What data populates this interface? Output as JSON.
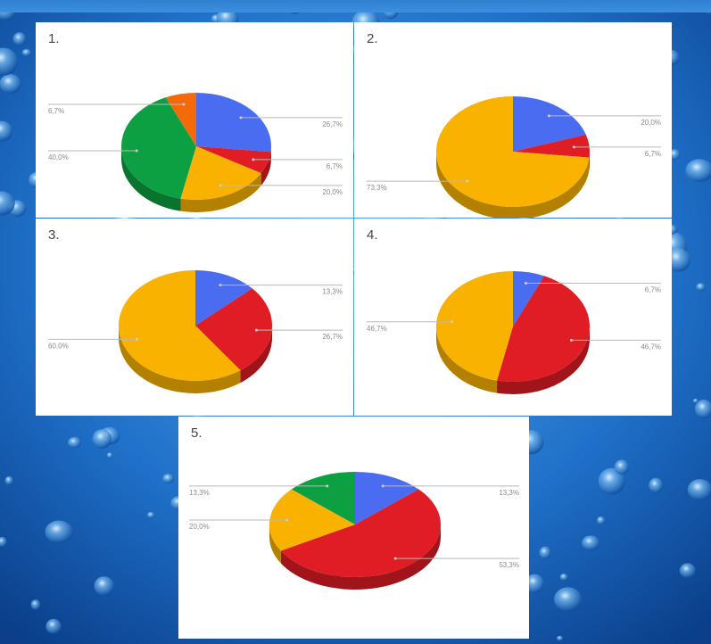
{
  "colors": {
    "blue": "#4a6cf0",
    "red": "#e01d24",
    "yellow": "#f9b200",
    "green": "#0da043",
    "orange": "#f46a0a"
  },
  "chart_data": [
    {
      "type": "pie",
      "label": "1.",
      "slices": [
        {
          "color": "blue",
          "value": 26.7,
          "label": "26,7%"
        },
        {
          "color": "red",
          "value": 6.7,
          "label": "6,7%"
        },
        {
          "color": "yellow",
          "value": 20.0,
          "label": "20,0%"
        },
        {
          "color": "green",
          "value": 40.0,
          "label": "40,0%"
        },
        {
          "color": "orange",
          "value": 6.7,
          "label": "6,7%"
        }
      ]
    },
    {
      "type": "pie",
      "label": "2.",
      "slices": [
        {
          "color": "blue",
          "value": 20.0,
          "label": "20,0%"
        },
        {
          "color": "red",
          "value": 6.7,
          "label": "6,7%"
        },
        {
          "color": "yellow",
          "value": 73.3,
          "label": "73,3%"
        }
      ]
    },
    {
      "type": "pie",
      "label": "3.",
      "slices": [
        {
          "color": "blue",
          "value": 13.3,
          "label": "13,3%"
        },
        {
          "color": "red",
          "value": 26.7,
          "label": "26,7%"
        },
        {
          "color": "yellow",
          "value": 60.0,
          "label": "60,0%"
        }
      ]
    },
    {
      "type": "pie",
      "label": "4.",
      "slices": [
        {
          "color": "blue",
          "value": 6.7,
          "label": "6,7%"
        },
        {
          "color": "red",
          "value": 46.7,
          "label": "46,7%"
        },
        {
          "color": "yellow",
          "value": 46.7,
          "label": "46,7%"
        }
      ]
    },
    {
      "type": "pie",
      "label": "5.",
      "slices": [
        {
          "color": "blue",
          "value": 13.3,
          "label": "13,3%"
        },
        {
          "color": "red",
          "value": 53.3,
          "label": "53,3%"
        },
        {
          "color": "yellow",
          "value": 20.0,
          "label": "20,0%"
        },
        {
          "color": "green",
          "value": 13.3,
          "label": "13,3%"
        }
      ]
    }
  ]
}
